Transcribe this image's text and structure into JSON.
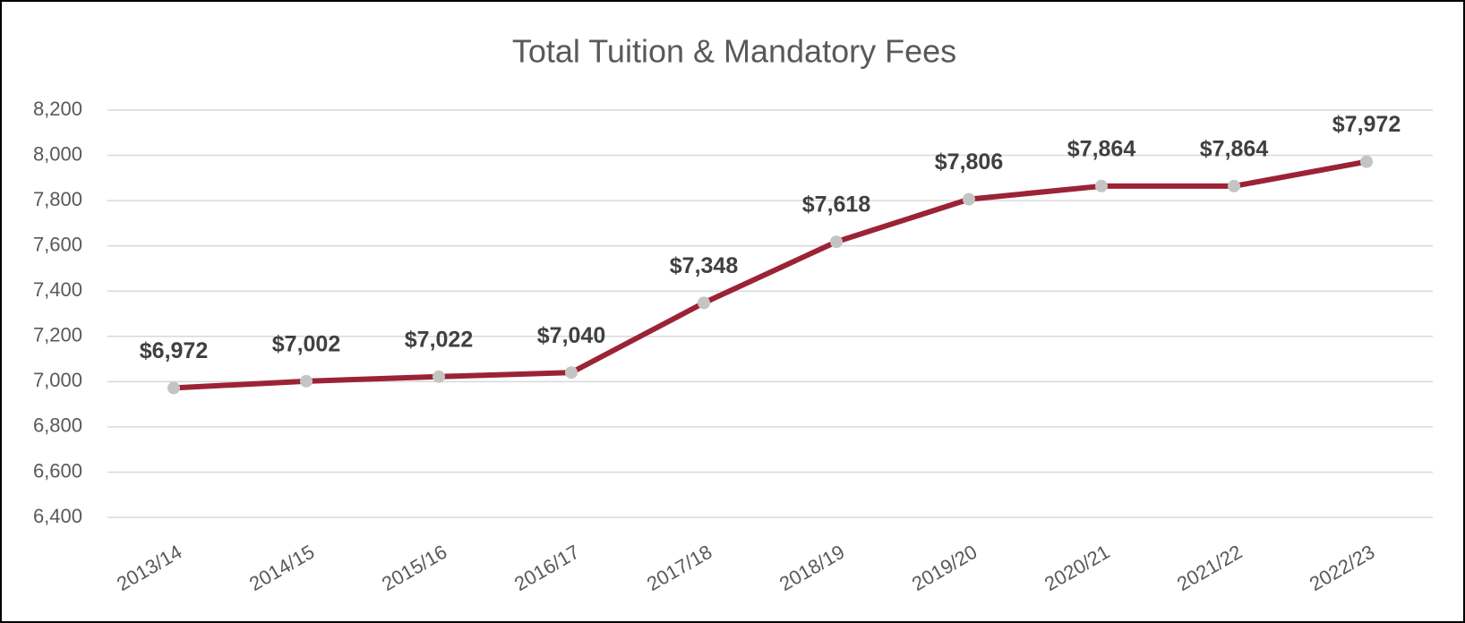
{
  "chart_data": {
    "type": "line",
    "title": "Total Tuition & Mandatory Fees",
    "categories": [
      "2013/14",
      "2014/15",
      "2015/16",
      "2016/17",
      "2017/18",
      "2018/19",
      "2019/20",
      "2020/21",
      "2021/22",
      "2022/23"
    ],
    "series": [
      {
        "color": "#9b2335",
        "marker_color": "#c4c4c4",
        "values": [
          6972,
          7002,
          7022,
          7040,
          7348,
          7618,
          7806,
          7864,
          7864,
          7972
        ],
        "value_labels": [
          "$6,972",
          "$7,002",
          "$7,022",
          "$7,040",
          "$7,348",
          "$7,618",
          "$7,806",
          "$7,864",
          "$7,864",
          "$7,972"
        ]
      }
    ],
    "ylim": [
      6400,
      8200
    ],
    "yticks": [
      {
        "value": 6400,
        "label": "6,400"
      },
      {
        "value": 6600,
        "label": "6,600"
      },
      {
        "value": 6800,
        "label": "6,800"
      },
      {
        "value": 7000,
        "label": "7,000"
      },
      {
        "value": 7200,
        "label": "7,200"
      },
      {
        "value": 7400,
        "label": "7,400"
      },
      {
        "value": 7600,
        "label": "7,600"
      },
      {
        "value": 7800,
        "label": "7,800"
      },
      {
        "value": 8000,
        "label": "8,000"
      },
      {
        "value": 8200,
        "label": "8,200"
      }
    ],
    "grid": true
  }
}
